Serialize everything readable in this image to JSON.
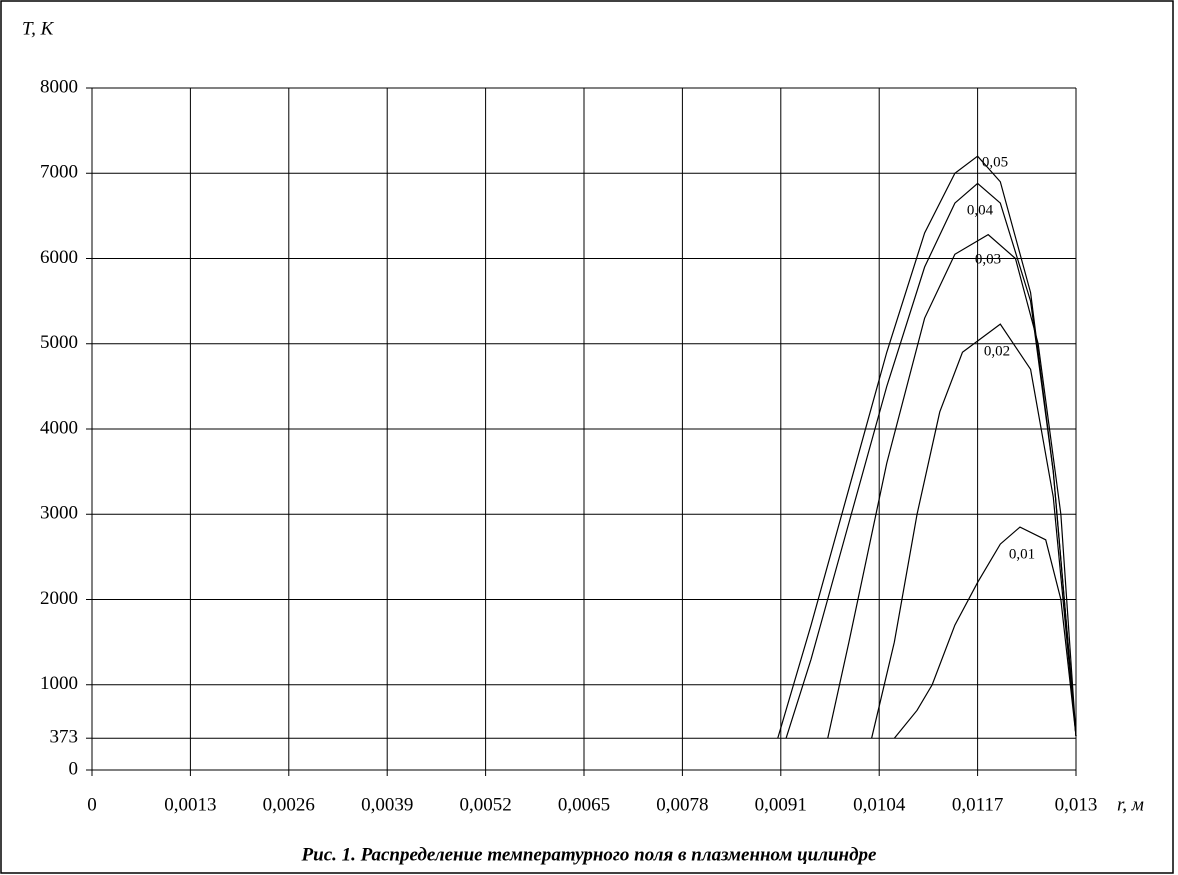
{
  "chart_data": {
    "type": "line",
    "caption": "Рис. 1. Распределение температурного поля в плазменном цилиндре",
    "y_label": "T, K",
    "x_label": "r, м",
    "xlim": [
      0,
      0.013
    ],
    "xticks": [
      0,
      {
        "value": 0.0013,
        "label": "0,0013"
      },
      {
        "value": 0.0026,
        "label": "0,0026"
      },
      {
        "value": 0.0039,
        "label": "0,0039"
      },
      {
        "value": 0.0052,
        "label": "0,0052"
      },
      {
        "value": 0.0065,
        "label": "0,0065"
      },
      {
        "value": 0.0078,
        "label": "0,0078"
      },
      {
        "value": 0.0091,
        "label": "0,0091"
      },
      {
        "value": 0.0104,
        "label": "0,0104"
      },
      {
        "value": 0.0117,
        "label": "0,0117"
      },
      {
        "value": 0.013,
        "label": "0,013"
      }
    ],
    "ylim": [
      0,
      8000
    ],
    "yticks": [
      0,
      373,
      1000,
      2000,
      3000,
      4000,
      5000,
      6000,
      7000,
      8000
    ],
    "grid": true,
    "series": [
      {
        "name": "0,05",
        "color": "#000000",
        "x": [
          0.00906,
          0.0095,
          0.01,
          0.0105,
          0.011,
          0.0114,
          0.0117,
          0.012,
          0.0124,
          0.0127,
          0.013
        ],
        "values": [
          373,
          1700,
          3300,
          4900,
          6300,
          7000,
          7200,
          6900,
          5600,
          3500,
          400
        ]
      },
      {
        "name": "0,04",
        "color": "#000000",
        "x": [
          0.00917,
          0.0095,
          0.01,
          0.0105,
          0.011,
          0.0114,
          0.0117,
          0.012,
          0.0124,
          0.0127,
          0.013
        ],
        "values": [
          373,
          1300,
          2900,
          4500,
          5900,
          6650,
          6880,
          6650,
          5500,
          3500,
          400
        ]
      },
      {
        "name": "0,03",
        "color": "#000000",
        "x": [
          0.00972,
          0.01,
          0.0105,
          0.011,
          0.0114,
          0.01184,
          0.0122,
          0.0125,
          0.0128,
          0.013
        ],
        "values": [
          373,
          1500,
          3600,
          5300,
          6050,
          6280,
          6000,
          5000,
          3000,
          400
        ]
      },
      {
        "name": "0,02",
        "color": "#000000",
        "x": [
          0.0103,
          0.0106,
          0.0109,
          0.0112,
          0.0115,
          0.012,
          0.0124,
          0.0127,
          0.013
        ],
        "values": [
          373,
          1500,
          3000,
          4200,
          4900,
          5230,
          4700,
          3200,
          400
        ]
      },
      {
        "name": "0,01",
        "color": "#000000",
        "x": [
          0.0106,
          0.0109,
          0.0111,
          0.0114,
          0.0117,
          0.012,
          0.01226,
          0.0126,
          0.0128,
          0.013
        ],
        "values": [
          373,
          700,
          1000,
          1700,
          2200,
          2650,
          2850,
          2700,
          2000,
          400
        ]
      }
    ]
  }
}
